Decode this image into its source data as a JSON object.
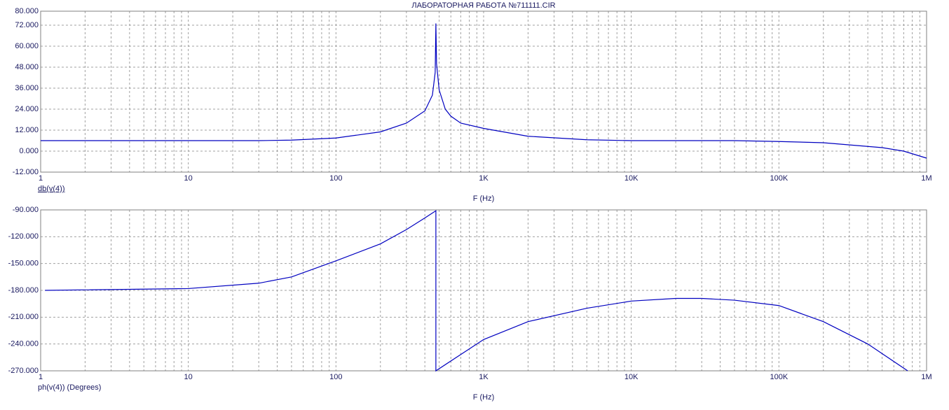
{
  "chart_data": [
    {
      "type": "line",
      "title": "ЛАБОРАТОРНАЯ РАБОТА №711111.CIR",
      "ylabel": "db(v(4))",
      "xlabel": "F (Hz)",
      "xscale": "log",
      "grid": true,
      "xlim": [
        1,
        1000000
      ],
      "xticks": [
        1,
        10,
        100,
        {
          "value": 1000,
          "label": "1K"
        },
        {
          "value": 10000,
          "label": "10K"
        },
        {
          "value": 100000,
          "label": "100K"
        },
        {
          "value": 1000000,
          "label": "1M"
        }
      ],
      "ylim": [
        -12,
        80
      ],
      "yticks": [
        {
          "value": -12,
          "label": "-12.000"
        },
        {
          "value": 0,
          "label": "0.000"
        },
        {
          "value": 12,
          "label": "12.000"
        },
        {
          "value": 24,
          "label": "24.000"
        },
        {
          "value": 36,
          "label": "36.000"
        },
        {
          "value": 48,
          "label": "48.000"
        },
        {
          "value": 60,
          "label": "60.000"
        },
        {
          "value": 72,
          "label": "72.000"
        },
        {
          "value": 80,
          "label": "80.000"
        }
      ],
      "x": [
        1,
        10,
        30,
        50,
        100,
        200,
        300,
        400,
        450,
        470,
        475,
        480,
        500,
        550,
        600,
        700,
        1000,
        2000,
        5000,
        10000,
        50000,
        100000,
        200000,
        500000,
        700000,
        1000000
      ],
      "series": [
        {
          "color": "#0000c0",
          "values": [
            6,
            6,
            6,
            6.3,
            7.5,
            11,
            16,
            23,
            32,
            45,
            73,
            50,
            35,
            24,
            20,
            16,
            13,
            8.5,
            6.5,
            6,
            6,
            5.5,
            4.8,
            2,
            0,
            -4
          ]
        }
      ]
    },
    {
      "type": "line",
      "ylabel": "ph(v(4)) (Degrees)",
      "xlabel": "F (Hz)",
      "xscale": "log",
      "grid": true,
      "xlim": [
        1,
        1000000
      ],
      "xticks": [
        1,
        10,
        100,
        {
          "value": 1000,
          "label": "1K"
        },
        {
          "value": 10000,
          "label": "10K"
        },
        {
          "value": 100000,
          "label": "100K"
        },
        {
          "value": 1000000,
          "label": "1M"
        }
      ],
      "ylim": [
        -270,
        -90
      ],
      "yticks": [
        {
          "value": -270,
          "label": "-270.000"
        },
        {
          "value": -240,
          "label": "-240.000"
        },
        {
          "value": -210,
          "label": "-210.000"
        },
        {
          "value": -180,
          "label": "-180.000"
        },
        {
          "value": -150,
          "label": "-150.000"
        },
        {
          "value": -120,
          "label": "-120.000"
        },
        {
          "value": -90,
          "label": "-90.000"
        }
      ],
      "x": [
        1.07,
        10,
        30,
        50,
        100,
        200,
        300,
        400,
        475,
        475,
        1000,
        2000,
        5000,
        10000,
        20000,
        30000,
        50000,
        100000,
        200000,
        400000,
        745000
      ],
      "series": [
        {
          "color": "#0000c0",
          "values": [
            -180,
            -178,
            -172,
            -165,
            -147,
            -128,
            -112,
            -99,
            -91,
            -270,
            -235,
            -215,
            -200,
            -192,
            -189,
            -189,
            -191,
            -197,
            -215,
            -240,
            -270
          ]
        }
      ]
    }
  ]
}
